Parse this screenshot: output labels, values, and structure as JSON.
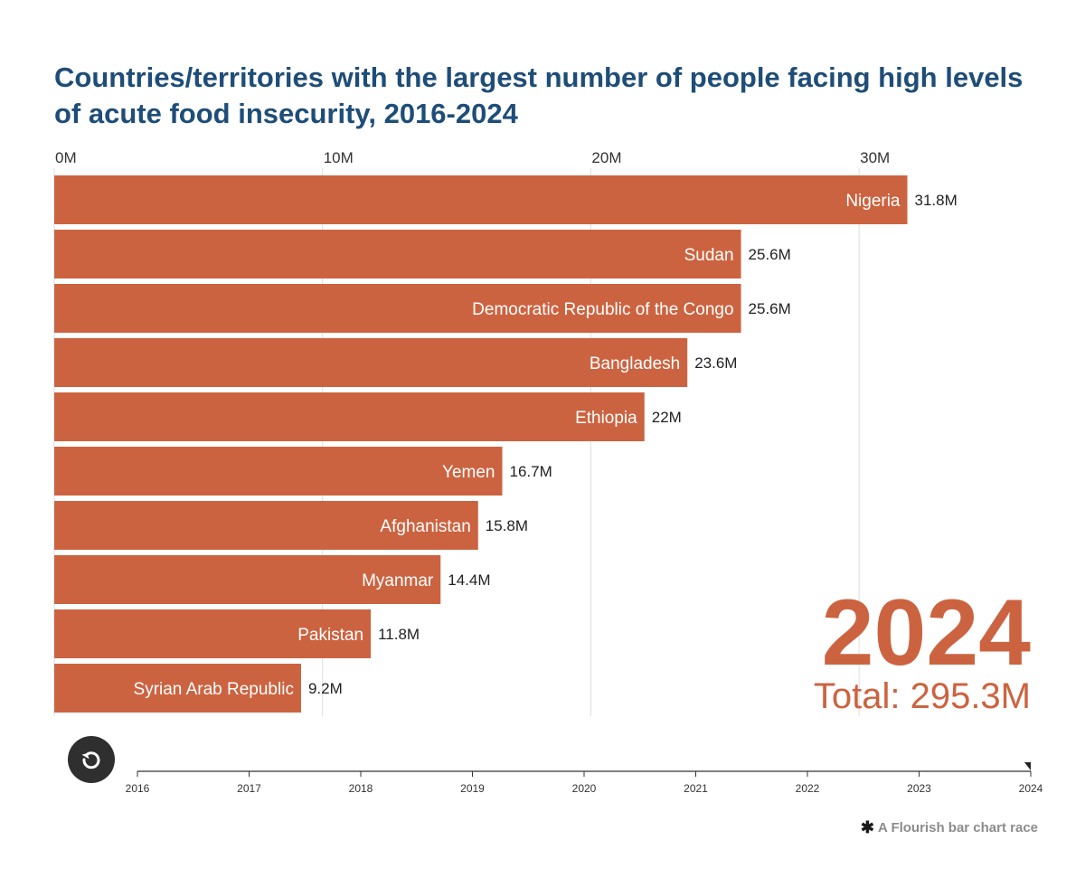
{
  "title": "Countries/territories with the largest number of people facing high levels of acute food insecurity, 2016-2024",
  "colors": {
    "bar": "#cc6340",
    "title": "#1e4d78",
    "grid": "#dddddd",
    "year": "#cc6340"
  },
  "year_display": "2024",
  "total_display": "Total: 295.3M",
  "replay_icon": "replay-icon",
  "timeline": {
    "years": [
      "2016",
      "2017",
      "2018",
      "2019",
      "2020",
      "2021",
      "2022",
      "2023",
      "2024"
    ],
    "current": "2024"
  },
  "credit": {
    "icon": "flourish-asterisk-icon",
    "text": "A Flourish bar chart race"
  },
  "chart_data": {
    "type": "bar",
    "orientation": "horizontal",
    "title": "Countries/territories with the largest number of people facing high levels of acute food insecurity, 2016-2024",
    "categories": [
      "Nigeria",
      "Sudan",
      "Democratic Republic of the Congo",
      "Bangladesh",
      "Ethiopia",
      "Yemen",
      "Afghanistan",
      "Myanmar",
      "Pakistan",
      "Syrian Arab Republic"
    ],
    "values": [
      31.8,
      25.6,
      25.6,
      23.6,
      22,
      16.7,
      15.8,
      14.4,
      11.8,
      9.2
    ],
    "value_labels": [
      "31.8M",
      "25.6M",
      "25.6M",
      "23.6M",
      "22M",
      "16.7M",
      "15.8M",
      "14.4M",
      "11.8M",
      "9.2M"
    ],
    "xticks": [
      0,
      10,
      20,
      30
    ],
    "xtick_labels": [
      "0M",
      "10M",
      "20M",
      "30M"
    ],
    "xlim": [
      0,
      36.4
    ],
    "xlabel": "",
    "ylabel": "",
    "grid": true,
    "axis_position": "top"
  }
}
